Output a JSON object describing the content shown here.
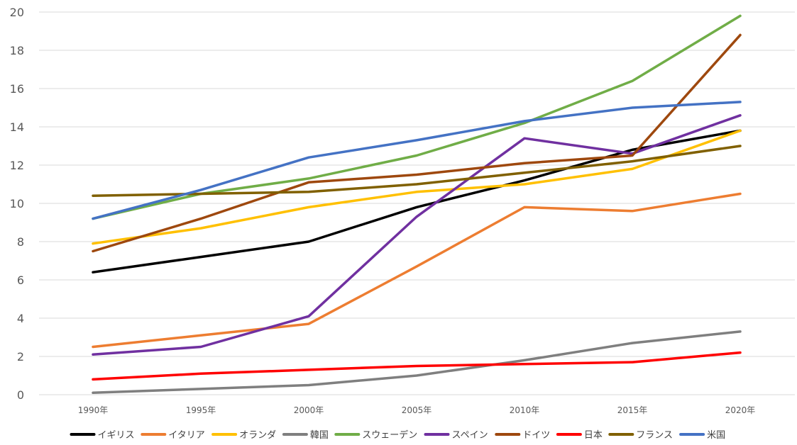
{
  "chart_data": {
    "type": "line",
    "title": "",
    "xlabel": "",
    "ylabel": "",
    "categories": [
      "1990年",
      "1995年",
      "2000年",
      "2005年",
      "2010年",
      "2015年",
      "2020年"
    ],
    "ylim": [
      0,
      20
    ],
    "yticks": [
      0,
      2,
      4,
      6,
      8,
      10,
      12,
      14,
      16,
      18,
      20
    ],
    "grid": true,
    "legend_position": "bottom",
    "series": [
      {
        "name": "イギリス",
        "color": "#000000",
        "values": [
          6.4,
          7.2,
          8.0,
          9.8,
          11.2,
          12.8,
          13.8
        ]
      },
      {
        "name": "イタリア",
        "color": "#ED7D31",
        "values": [
          2.5,
          3.1,
          3.7,
          6.7,
          9.8,
          9.6,
          10.5
        ]
      },
      {
        "name": "オランダ",
        "color": "#FFC000",
        "values": [
          7.9,
          8.7,
          9.8,
          10.6,
          11.0,
          11.8,
          13.8
        ]
      },
      {
        "name": "韓国",
        "color": "#7F7F7F",
        "values": [
          0.1,
          0.3,
          0.5,
          1.0,
          1.8,
          2.7,
          3.3
        ]
      },
      {
        "name": "スウェーデン",
        "color": "#70AD47",
        "values": [
          9.2,
          10.5,
          11.3,
          12.5,
          14.2,
          16.4,
          19.8
        ]
      },
      {
        "name": "スペイン",
        "color": "#7030A0",
        "values": [
          2.1,
          2.5,
          4.1,
          9.3,
          13.4,
          12.6,
          14.6
        ]
      },
      {
        "name": "ドイツ",
        "color": "#9E480E",
        "values": [
          7.5,
          9.2,
          11.1,
          11.5,
          12.1,
          12.5,
          18.8
        ]
      },
      {
        "name": "日本",
        "color": "#FF0000",
        "values": [
          0.8,
          1.1,
          1.3,
          1.5,
          1.6,
          1.7,
          2.2
        ]
      },
      {
        "name": "フランス",
        "color": "#806000",
        "values": [
          10.4,
          10.5,
          10.6,
          11.0,
          11.6,
          12.2,
          13.0
        ]
      },
      {
        "name": "米国",
        "color": "#4472C4",
        "values": [
          9.2,
          10.7,
          12.4,
          13.3,
          14.3,
          15.0,
          15.3
        ]
      }
    ]
  }
}
